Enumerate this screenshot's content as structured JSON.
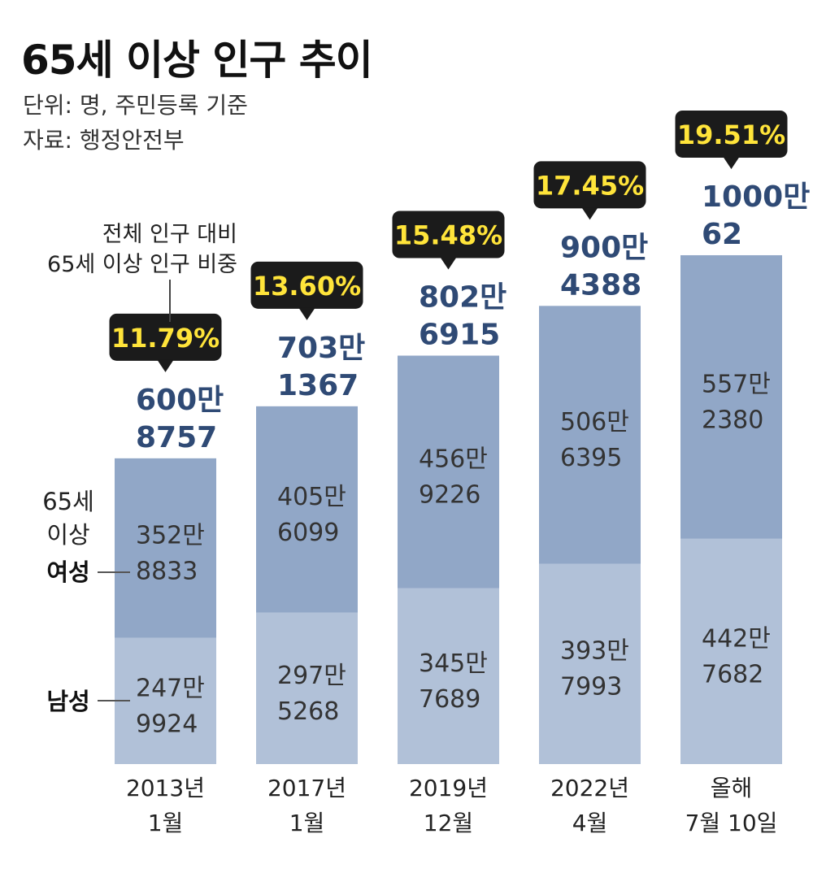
{
  "header": {
    "title": "65세 이상 인구 추이",
    "unit": "단위: 명, 주민등록 기준",
    "source": "자료: 행정안전부"
  },
  "annotation": {
    "line1": "전체 인구 대비",
    "line2": "65세 이상 인구 비중"
  },
  "legend": {
    "group_line1": "65세",
    "group_line2": "이상",
    "female": "여성",
    "male": "남성"
  },
  "colors": {
    "female": "#91a7c7",
    "male": "#b1c1d8",
    "total_text": "#2f4a75",
    "badge_bg": "#1b1b1b",
    "badge_text": "#ffe43a"
  },
  "chart_data": {
    "type": "bar",
    "stacked": true,
    "categories": [
      "2013년 1월",
      "2017년 1월",
      "2019년 12월",
      "2022년 4월",
      "올해 7월 10일"
    ],
    "category_lines": [
      [
        "2013년",
        "1월"
      ],
      [
        "2017년",
        "1월"
      ],
      [
        "2019년",
        "12월"
      ],
      [
        "2022년",
        "4월"
      ],
      [
        "올해",
        "7월 10일"
      ]
    ],
    "series": [
      {
        "name": "남성",
        "values": [
          2479924,
          2975268,
          3457689,
          3937993,
          4427682
        ],
        "labels": [
          [
            "247만",
            "9924"
          ],
          [
            "297만",
            "5268"
          ],
          [
            "345만",
            "7689"
          ],
          [
            "393만",
            "7993"
          ],
          [
            "442만",
            "7682"
          ]
        ]
      },
      {
        "name": "여성",
        "values": [
          3528833,
          4056099,
          4569226,
          5066395,
          5572380
        ],
        "labels": [
          [
            "352만",
            "8833"
          ],
          [
            "405만",
            "6099"
          ],
          [
            "456만",
            "9226"
          ],
          [
            "506만",
            "6395"
          ],
          [
            "557만",
            "2380"
          ]
        ]
      }
    ],
    "totals": [
      6008757,
      7031367,
      8026915,
      9004388,
      10000062
    ],
    "total_labels": [
      [
        "600만",
        "8757"
      ],
      [
        "703만",
        "1367"
      ],
      [
        "802만",
        "6915"
      ],
      [
        "900만",
        "4388"
      ],
      [
        "1000만",
        "62"
      ]
    ],
    "share_percent": [
      "11.79%",
      "13.60%",
      "15.48%",
      "17.45%",
      "19.51%"
    ],
    "title": "65세 이상 인구 추이",
    "xlabel": "",
    "ylabel": "",
    "ylim": [
      0,
      10000062
    ],
    "grid": false
  }
}
